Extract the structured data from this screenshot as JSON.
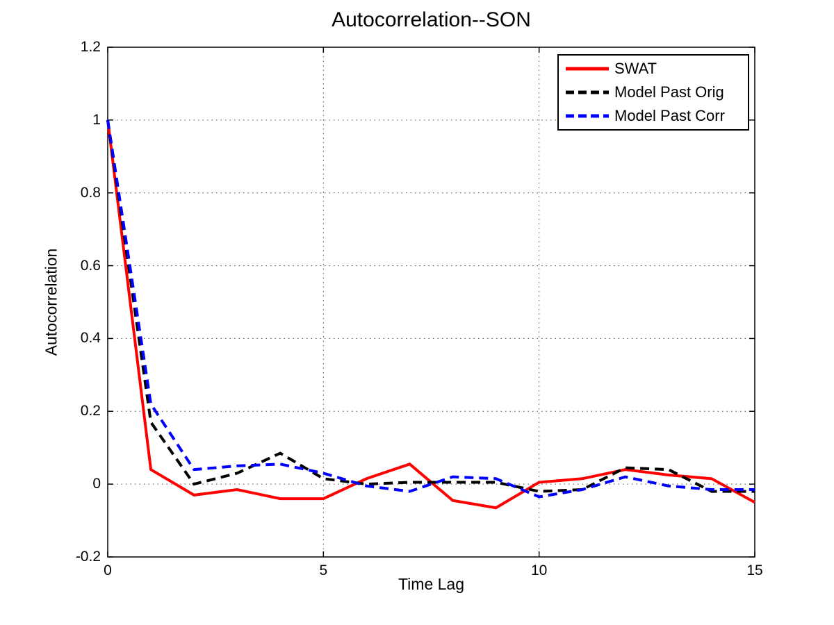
{
  "figure": {
    "background": "#ffffff",
    "axes_color": "#000000",
    "grid_color": "#444444"
  },
  "chart_data": {
    "type": "line",
    "title": "Autocorrelation--SON",
    "xlabel": "Time Lag",
    "ylabel": "Autocorrelation",
    "xlim": [
      0,
      15
    ],
    "ylim": [
      -0.2,
      1.2
    ],
    "xticks": [
      0,
      5,
      10,
      15
    ],
    "yticks": [
      -0.2,
      0,
      0.2,
      0.4,
      0.6,
      0.8,
      1,
      1.2
    ],
    "grid": true,
    "grid_style": "dotted",
    "legend_position": "top-right",
    "x": [
      0,
      1,
      2,
      3,
      4,
      5,
      6,
      7,
      8,
      9,
      10,
      11,
      12,
      13,
      14,
      15
    ],
    "series": [
      {
        "name": "SWAT",
        "color": "#ff0000",
        "style": "solid",
        "values": [
          1.0,
          0.04,
          -0.03,
          -0.015,
          -0.04,
          -0.04,
          0.015,
          0.055,
          -0.045,
          -0.065,
          0.005,
          0.015,
          0.04,
          0.025,
          0.015,
          -0.05
        ]
      },
      {
        "name": "Model Past Orig",
        "color": "#000000",
        "style": "dashed",
        "values": [
          1.0,
          0.17,
          0.0,
          0.03,
          0.085,
          0.015,
          0.0,
          0.005,
          0.005,
          0.005,
          -0.02,
          -0.015,
          0.045,
          0.04,
          -0.02,
          -0.02
        ]
      },
      {
        "name": "Model Past Corr",
        "color": "#0000ff",
        "style": "dashed",
        "values": [
          1.0,
          0.22,
          0.04,
          0.05,
          0.055,
          0.03,
          -0.005,
          -0.02,
          0.02,
          0.015,
          -0.035,
          -0.015,
          0.02,
          -0.005,
          -0.015,
          -0.015
        ]
      }
    ]
  }
}
